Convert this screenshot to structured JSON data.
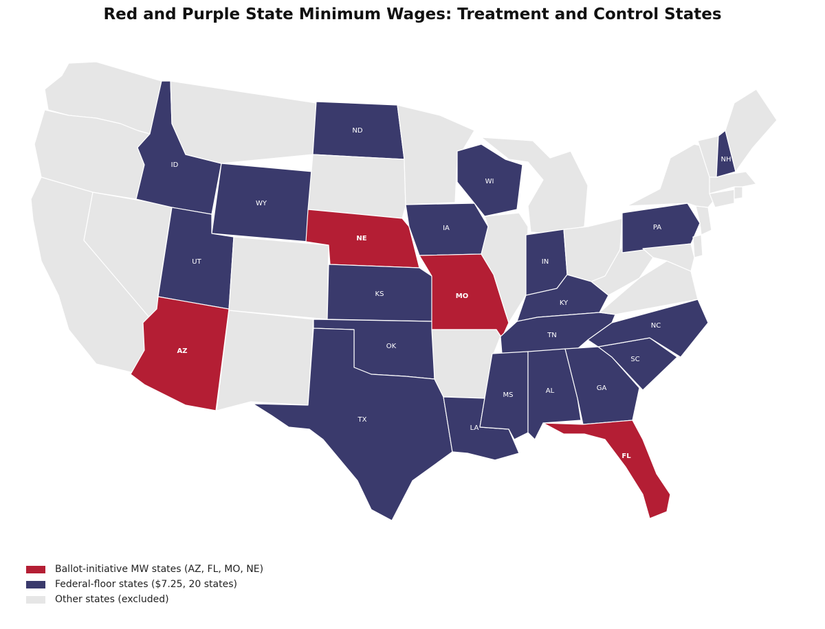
{
  "title": "Red and Purple State Minimum Wages: Treatment and Control States",
  "colors": {
    "treatment": "#b41e34",
    "control": "#3a3a6c",
    "other": "#e6e6e6",
    "border": "#ffffff"
  },
  "legend": [
    {
      "group": "treatment",
      "label": "Ballot-initiative MW states (AZ, FL, MO, NE)"
    },
    {
      "group": "control",
      "label": "Federal-floor states ($7.25, 20 states)"
    },
    {
      "group": "other",
      "label": "Other states (excluded)"
    }
  ],
  "states": {
    "WA": {
      "group": "other"
    },
    "OR": {
      "group": "other"
    },
    "CA": {
      "group": "other"
    },
    "NV": {
      "group": "other"
    },
    "MT": {
      "group": "other"
    },
    "CO": {
      "group": "other"
    },
    "NM": {
      "group": "other"
    },
    "SD": {
      "group": "other"
    },
    "MN": {
      "group": "other"
    },
    "IL": {
      "group": "other"
    },
    "MI": {
      "group": "other"
    },
    "OH": {
      "group": "other"
    },
    "WV": {
      "group": "other"
    },
    "VA": {
      "group": "other"
    },
    "MD": {
      "group": "other"
    },
    "DE": {
      "group": "other"
    },
    "NJ": {
      "group": "other"
    },
    "NY": {
      "group": "other"
    },
    "CT": {
      "group": "other"
    },
    "RI": {
      "group": "other"
    },
    "MA": {
      "group": "other"
    },
    "VT": {
      "group": "other"
    },
    "ME": {
      "group": "other"
    },
    "AR": {
      "group": "other"
    },
    "ID": {
      "group": "control",
      "label": "ID"
    },
    "WY": {
      "group": "control",
      "label": "WY"
    },
    "UT": {
      "group": "control",
      "label": "UT"
    },
    "ND": {
      "group": "control",
      "label": "ND"
    },
    "KS": {
      "group": "control",
      "label": "KS"
    },
    "OK": {
      "group": "control",
      "label": "OK"
    },
    "TX": {
      "group": "control",
      "label": "TX"
    },
    "IA": {
      "group": "control",
      "label": "IA"
    },
    "WI": {
      "group": "control",
      "label": "WI"
    },
    "LA": {
      "group": "control",
      "label": "LA"
    },
    "MS": {
      "group": "control",
      "label": "MS"
    },
    "AL": {
      "group": "control",
      "label": "AL"
    },
    "GA": {
      "group": "control",
      "label": "GA"
    },
    "TN": {
      "group": "control",
      "label": "TN"
    },
    "KY": {
      "group": "control",
      "label": "KY"
    },
    "IN": {
      "group": "control",
      "label": "IN"
    },
    "SC": {
      "group": "control",
      "label": "SC"
    },
    "NC": {
      "group": "control",
      "label": "NC"
    },
    "PA": {
      "group": "control",
      "label": "PA"
    },
    "NH": {
      "group": "control",
      "label": "NH"
    },
    "AZ": {
      "group": "treatment",
      "label": "AZ"
    },
    "NE": {
      "group": "treatment",
      "label": "NE"
    },
    "MO": {
      "group": "treatment",
      "label": "MO"
    },
    "FL": {
      "group": "treatment",
      "label": "FL"
    }
  }
}
